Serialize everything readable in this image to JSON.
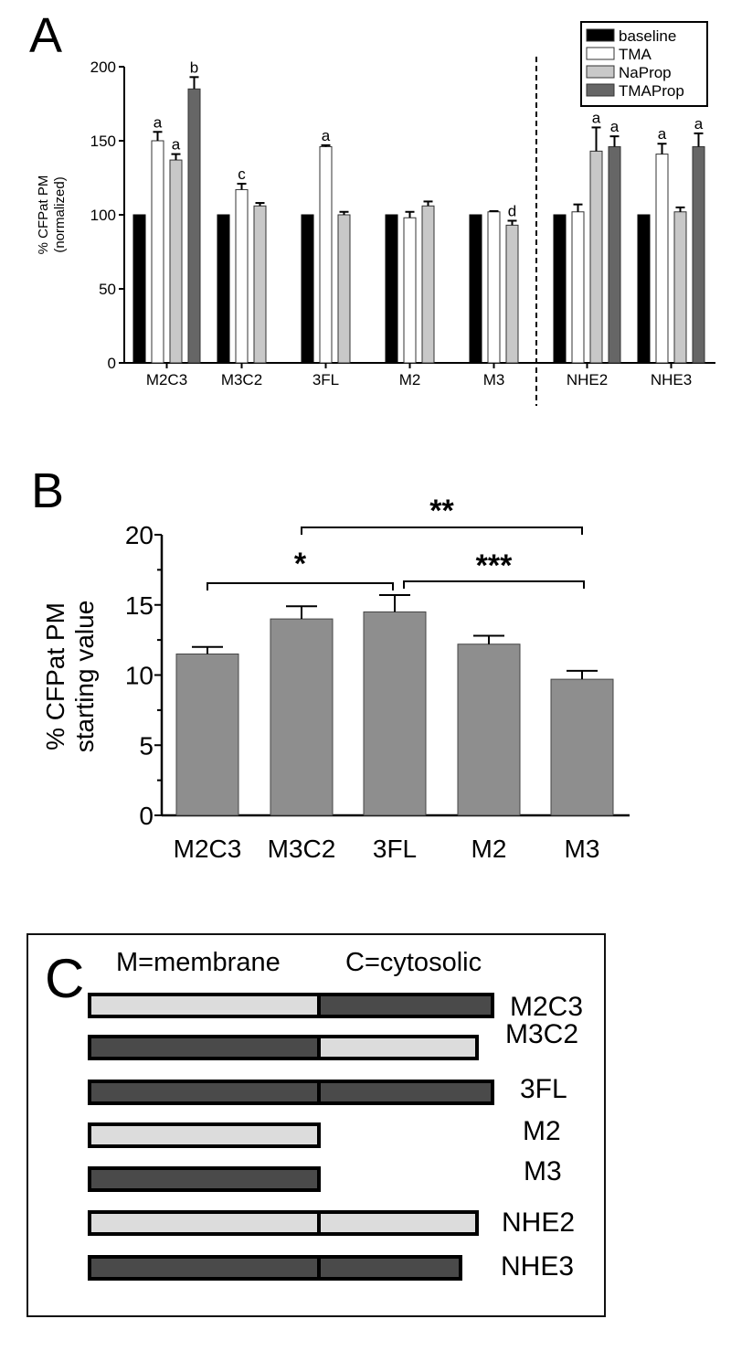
{
  "panels": {
    "A": {
      "letter": "A"
    },
    "B": {
      "letter": "B"
    },
    "C": {
      "letter": "C",
      "legend_membrane": "M=membrane",
      "legend_cytosolic": "C=cytosolic",
      "constructs": [
        {
          "name": "M2C3",
          "membrane": "light",
          "cytosolic": "dark",
          "length": "full"
        },
        {
          "name": "M3C2",
          "membrane": "dark",
          "cytosolic": "light",
          "length": "full"
        },
        {
          "name": "3FL",
          "membrane": "dark",
          "cytosolic": "dark",
          "length": "full"
        },
        {
          "name": "M2",
          "membrane": "light",
          "cytosolic": null,
          "length": "membrane-only"
        },
        {
          "name": "M3",
          "membrane": "dark",
          "cytosolic": null,
          "length": "membrane-only"
        },
        {
          "name": "NHE2",
          "membrane": "light",
          "cytosolic": "light",
          "length": "full"
        },
        {
          "name": "NHE3",
          "membrane": "dark",
          "cytosolic": "dark",
          "length": "full"
        }
      ]
    }
  },
  "colors": {
    "baseline": "#000000",
    "TMA": "#ffffff",
    "NaProp": "#c8c8c8",
    "TMAProp": "#666666",
    "panelB_bar": "#8e8e8e",
    "construct_light": "#dcdcdc",
    "construct_dark": "#4a4a4a"
  },
  "chart_data": [
    {
      "panel": "A",
      "type": "bar",
      "title": "",
      "xlabel": "",
      "ylabel": "% CFPat PM (normalized)",
      "ylabel_line1": "% CFPat PM",
      "ylabel_line2": "(normalized)",
      "ylim": [
        0,
        200
      ],
      "yticks": [
        0,
        50,
        100,
        150,
        200
      ],
      "categories": [
        "M2C3",
        "M3C2",
        "3FL",
        "M2",
        "M3",
        "NHE2",
        "NHE3"
      ],
      "legend": [
        "baseline",
        "TMA",
        "NaProp",
        "TMAProp"
      ],
      "legend_position": "upper right",
      "divider_after_category": "M3",
      "series": [
        {
          "name": "baseline",
          "values": [
            100,
            100,
            100,
            100,
            100,
            100,
            100
          ],
          "errors": [
            0,
            0,
            0,
            0,
            0,
            0,
            0
          ]
        },
        {
          "name": "TMA",
          "values": [
            150,
            117,
            146,
            98,
            102,
            102,
            141
          ],
          "errors": [
            6,
            4,
            1,
            4,
            0.5,
            5,
            7
          ]
        },
        {
          "name": "NaProp",
          "values": [
            137,
            106,
            100,
            106,
            93,
            143,
            102
          ],
          "errors": [
            4,
            2,
            2,
            3,
            3,
            16,
            3
          ]
        },
        {
          "name": "TMAProp",
          "values": [
            185,
            null,
            null,
            null,
            null,
            146,
            146
          ],
          "errors": [
            8,
            null,
            null,
            null,
            null,
            7,
            9
          ]
        }
      ],
      "annotations": [
        {
          "category": "M2C3",
          "series": "TMA",
          "text": "a"
        },
        {
          "category": "M2C3",
          "series": "NaProp",
          "text": "a"
        },
        {
          "category": "M2C3",
          "series": "TMAProp",
          "text": "b"
        },
        {
          "category": "M3C2",
          "series": "TMA",
          "text": "c"
        },
        {
          "category": "3FL",
          "series": "TMA",
          "text": "a"
        },
        {
          "category": "M3",
          "series": "NaProp",
          "text": "d"
        },
        {
          "category": "NHE2",
          "series": "NaProp",
          "text": "a"
        },
        {
          "category": "NHE2",
          "series": "TMAProp",
          "text": "a"
        },
        {
          "category": "NHE3",
          "series": "TMA",
          "text": "a"
        },
        {
          "category": "NHE3",
          "series": "TMAProp",
          "text": "a"
        }
      ]
    },
    {
      "panel": "B",
      "type": "bar",
      "title": "",
      "xlabel": "",
      "ylabel": "% CFPat PM starting value",
      "ylabel_line1": "% CFPat PM",
      "ylabel_line2": "starting value",
      "ylim": [
        0,
        20
      ],
      "yticks": [
        0,
        5,
        10,
        15,
        20
      ],
      "categories": [
        "M2C3",
        "M3C2",
        "3FL",
        "M2",
        "M3"
      ],
      "values": [
        11.5,
        14.0,
        14.5,
        12.2,
        9.7
      ],
      "errors": [
        0.5,
        0.9,
        1.2,
        0.6,
        0.6
      ],
      "significance": [
        {
          "from": "M2C3",
          "to": "3FL",
          "label": "*"
        },
        {
          "from": "M3C2",
          "to": "M3",
          "label": "**"
        },
        {
          "from": "3FL",
          "to": "M3",
          "label": "***"
        }
      ]
    }
  ]
}
